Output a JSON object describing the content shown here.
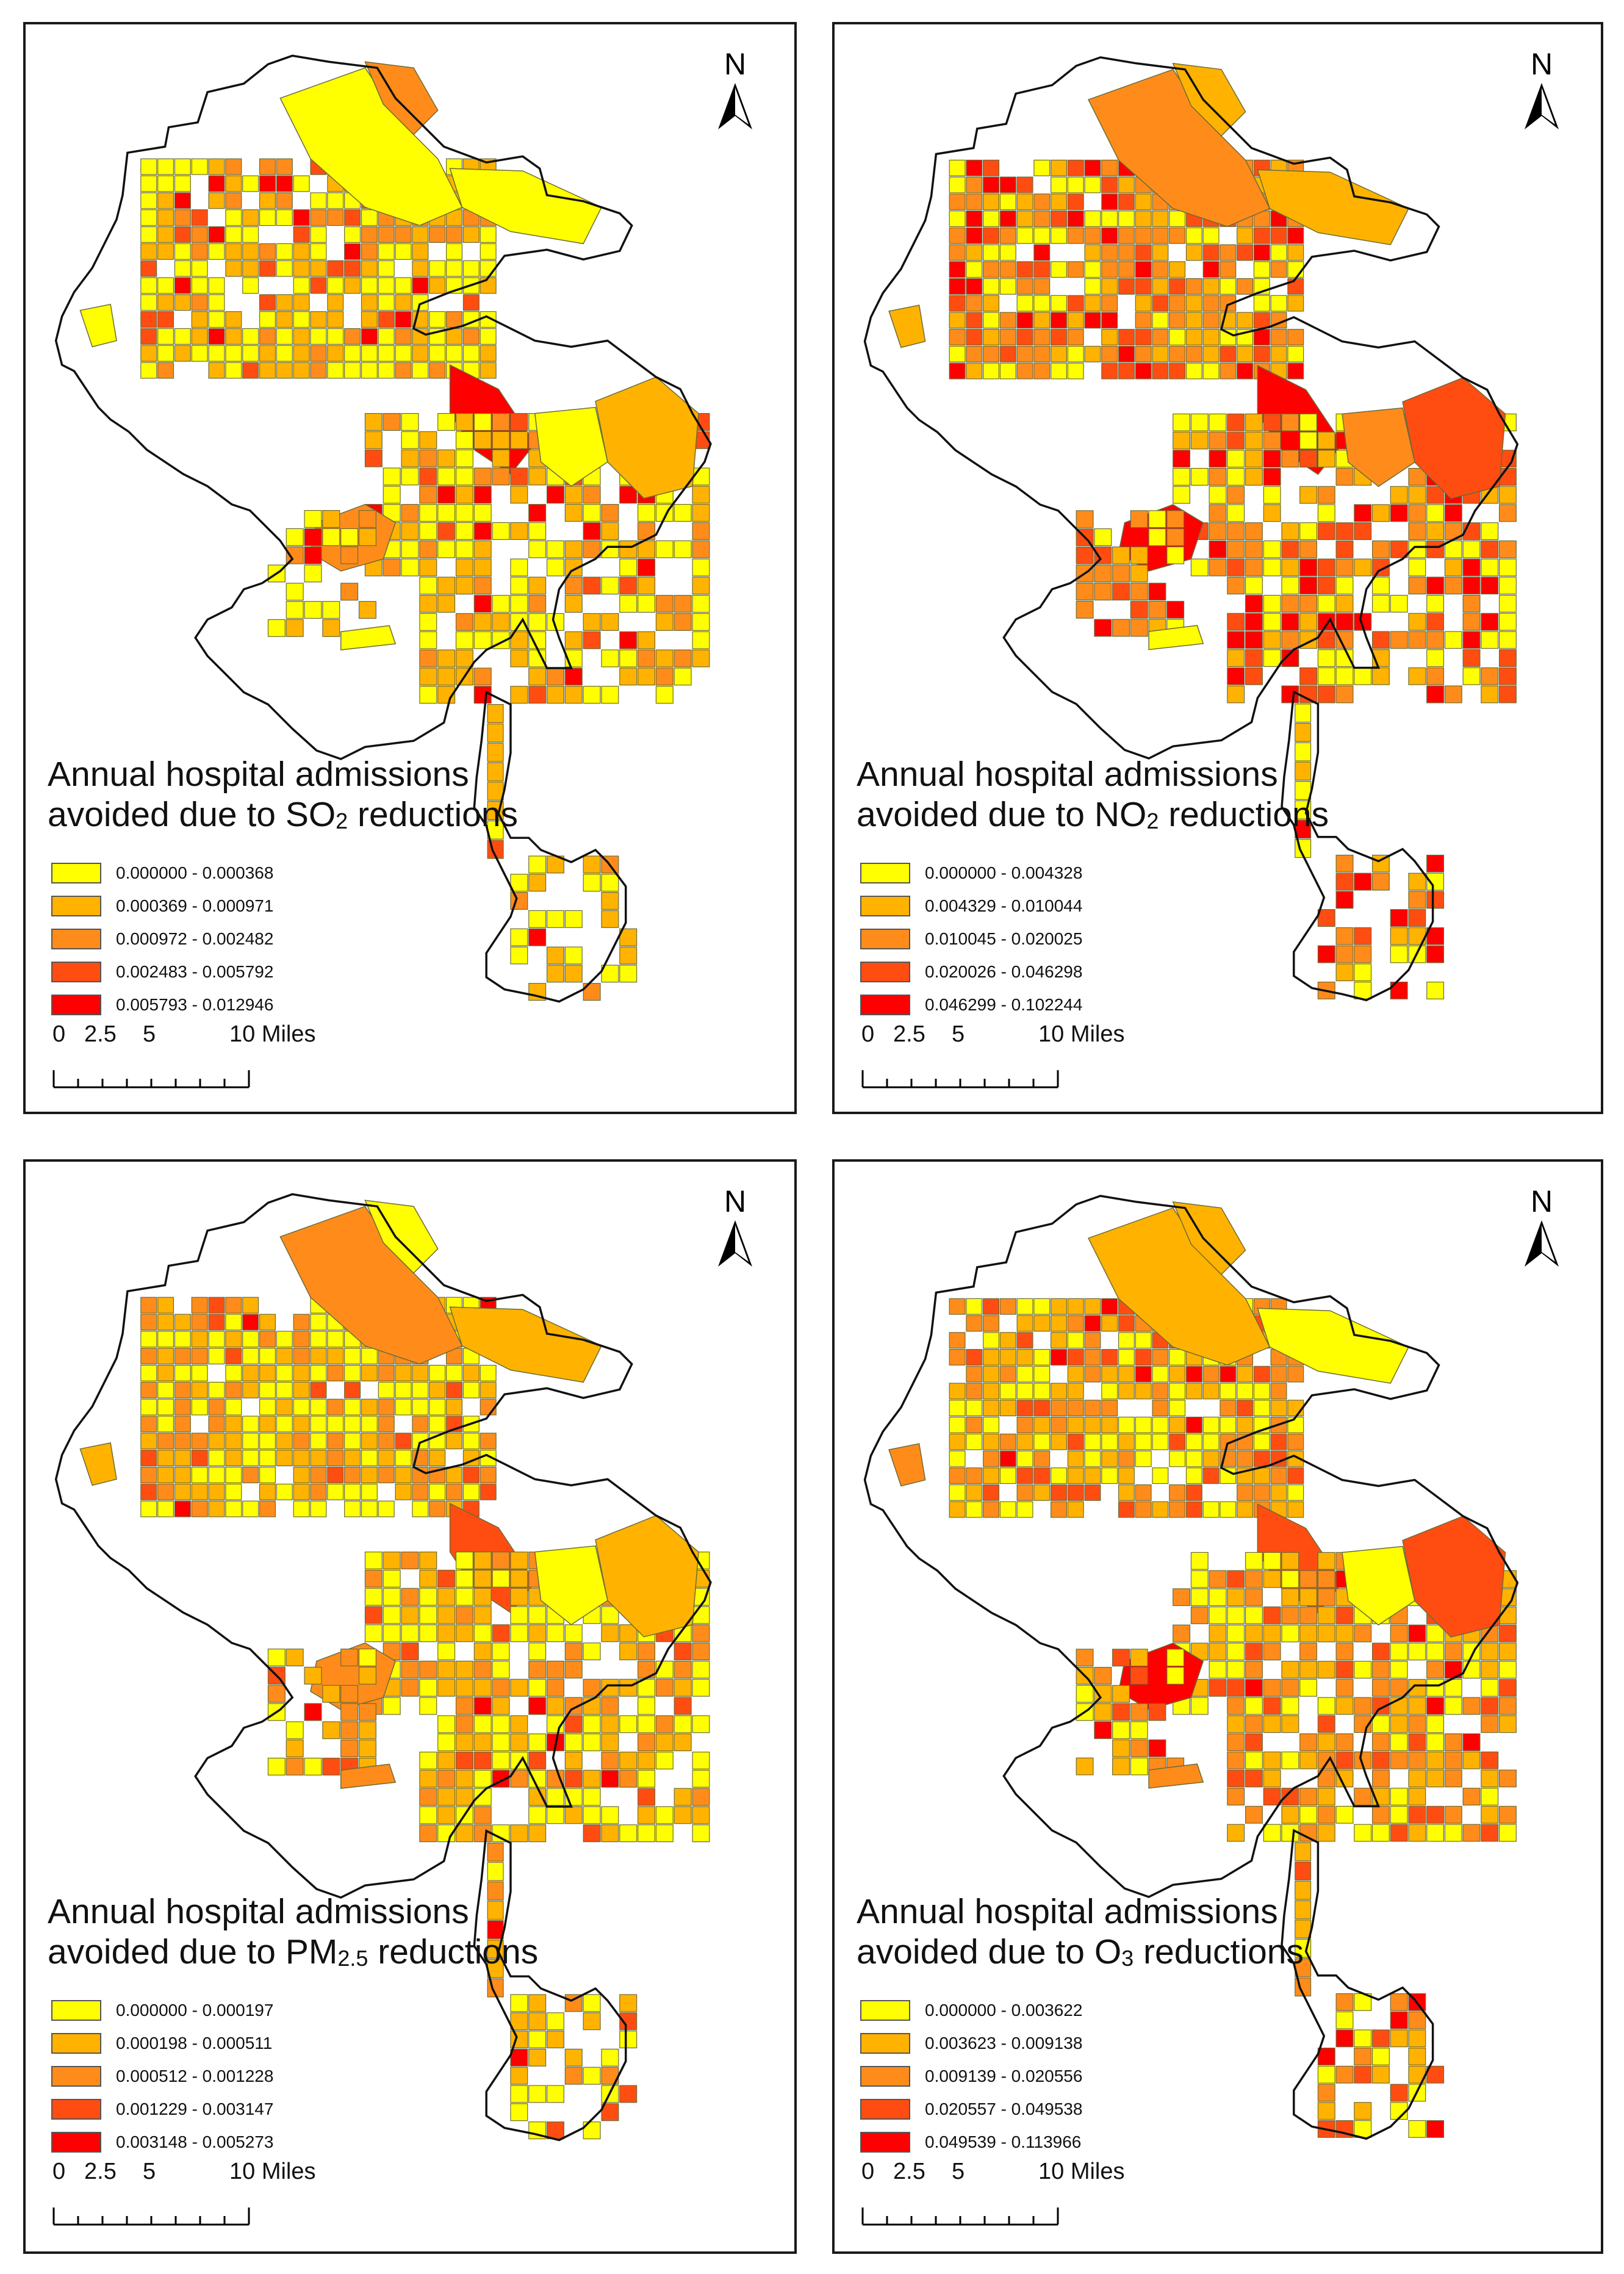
{
  "north_label": "N",
  "scale_bar": {
    "ticks": [
      "0",
      "2.5",
      "5",
      "10 Miles"
    ]
  },
  "colors": {
    "class1": "#ffff00",
    "class2": "#ffb300",
    "class3": "#ff8c1a",
    "class4": "#ff4d12",
    "class5": "#ff0000",
    "tract_stroke": "#6b6b3a",
    "boundary": "#111111"
  },
  "panels": [
    {
      "title_line1": "Annual hospital admissions",
      "title_pre": "avoided due to SO",
      "title_sub": "2",
      "title_post": " reductions",
      "legend": [
        "0.000000 - 0.000368",
        "0.000369 - 0.000971",
        "0.000972 - 0.002482",
        "0.002483 - 0.005792",
        "0.005793 - 0.012946"
      ]
    },
    {
      "title_line1": "Annual hospital admissions",
      "title_pre": "avoided due to NO",
      "title_sub": "2",
      "title_post": " reductions",
      "legend": [
        "0.000000 - 0.004328",
        "0.004329 - 0.010044",
        "0.010045 - 0.020025",
        "0.020026 - 0.046298",
        "0.046299 - 0.102244"
      ]
    },
    {
      "title_line1": "Annual hospital admissions",
      "title_pre": "avoided due to PM",
      "title_sub": "2.5",
      "title_post": " reductions",
      "legend": [
        "0.000000 - 0.000197",
        "0.000198 - 0.000511",
        "0.000512 - 0.001228",
        "0.001229 - 0.003147",
        "0.003148 - 0.005273"
      ]
    },
    {
      "title_line1": "Annual hospital admissions",
      "title_pre": "avoided due to O",
      "title_sub": "3",
      "title_post": " reductions",
      "legend": [
        "0.000000 - 0.003622",
        "0.003623 - 0.009138",
        "0.009139 - 0.020556",
        "0.020557 - 0.049538",
        "0.049539 - 0.113966"
      ]
    }
  ]
}
